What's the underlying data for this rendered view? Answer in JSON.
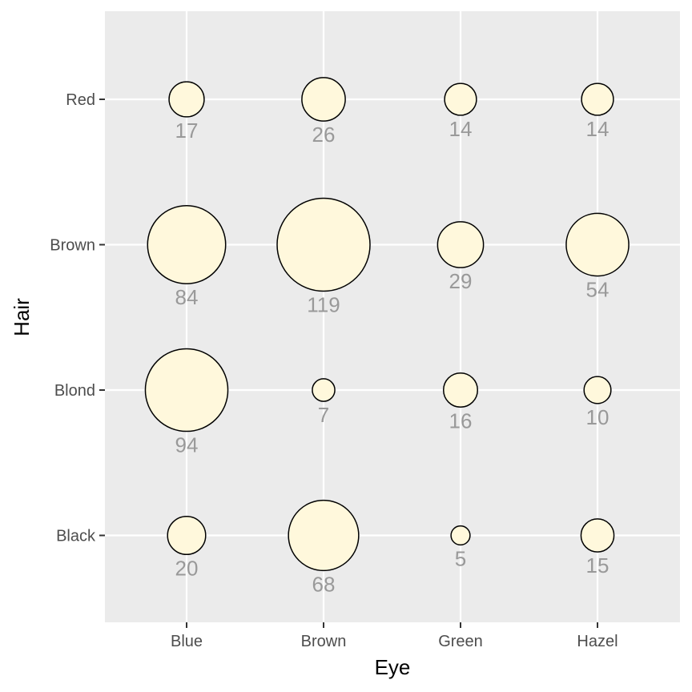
{
  "chart_data": {
    "type": "scatter",
    "xlabel": "Eye",
    "ylabel": "Hair",
    "x_categories": [
      "Blue",
      "Brown",
      "Green",
      "Hazel"
    ],
    "y_categories": [
      "Black",
      "Blond",
      "Brown",
      "Red"
    ],
    "points": [
      {
        "hair": "Black",
        "eye": "Blue",
        "count": 20
      },
      {
        "hair": "Black",
        "eye": "Brown",
        "count": 68
      },
      {
        "hair": "Black",
        "eye": "Green",
        "count": 5
      },
      {
        "hair": "Black",
        "eye": "Hazel",
        "count": 15
      },
      {
        "hair": "Blond",
        "eye": "Blue",
        "count": 94
      },
      {
        "hair": "Blond",
        "eye": "Brown",
        "count": 7
      },
      {
        "hair": "Blond",
        "eye": "Green",
        "count": 16
      },
      {
        "hair": "Blond",
        "eye": "Hazel",
        "count": 10
      },
      {
        "hair": "Brown",
        "eye": "Blue",
        "count": 84
      },
      {
        "hair": "Brown",
        "eye": "Brown",
        "count": 119
      },
      {
        "hair": "Brown",
        "eye": "Green",
        "count": 29
      },
      {
        "hair": "Brown",
        "eye": "Hazel",
        "count": 54
      },
      {
        "hair": "Red",
        "eye": "Blue",
        "count": 17
      },
      {
        "hair": "Red",
        "eye": "Brown",
        "count": 26
      },
      {
        "hair": "Red",
        "eye": "Green",
        "count": 14
      },
      {
        "hair": "Red",
        "eye": "Hazel",
        "count": 14
      }
    ],
    "grid": true,
    "legend": "none",
    "colors": {
      "panel": "#ebebeb",
      "gridline": "#ffffff",
      "bubble_fill": "#fff8dc",
      "bubble_stroke": "#000000",
      "label": "#999999"
    }
  }
}
